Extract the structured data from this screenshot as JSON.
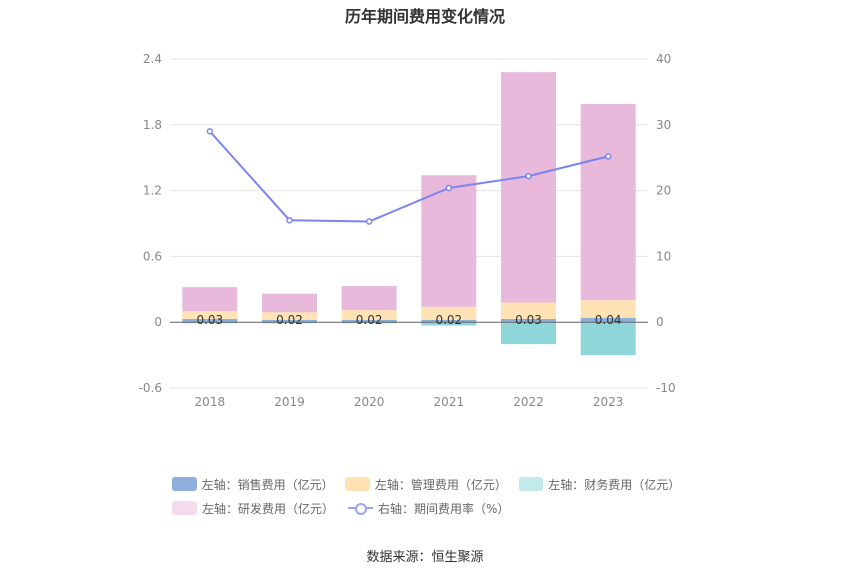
{
  "title": "历年期间费用变化情况",
  "source": "数据来源：恒生聚源",
  "chart_data": {
    "type": "bar",
    "categories": [
      "2018",
      "2019",
      "2020",
      "2021",
      "2022",
      "2023"
    ],
    "stacked": true,
    "series": [
      {
        "name": "左轴：销售费用（亿元）",
        "axis": "left",
        "type": "bar",
        "color": "#8eaedb",
        "values": [
          0.03,
          0.02,
          0.02,
          0.02,
          0.03,
          0.04
        ],
        "labels": [
          "0.03",
          "0.02",
          "0.02",
          "0.02",
          "0.03",
          "0.04"
        ]
      },
      {
        "name": "左轴：管理费用（亿元）",
        "axis": "left",
        "type": "bar",
        "color": "#ffe3b4",
        "values": [
          0.07,
          0.07,
          0.09,
          0.12,
          0.15,
          0.16
        ]
      },
      {
        "name": "左轴：财务费用（亿元）",
        "axis": "left",
        "type": "bar",
        "color": "#8fd6da",
        "values": [
          -0.01,
          -0.01,
          -0.01,
          -0.03,
          -0.2,
          -0.3
        ]
      },
      {
        "name": "左轴：研发费用（亿元）",
        "axis": "left",
        "type": "bar",
        "color": "#e8b9db",
        "values": [
          0.22,
          0.17,
          0.22,
          1.2,
          2.1,
          1.79
        ]
      },
      {
        "name": "右轴：期间费用率（%）",
        "axis": "right",
        "type": "line",
        "color": "#7b84ef",
        "values": [
          29.0,
          15.5,
          15.3,
          20.4,
          22.2,
          25.2
        ]
      }
    ],
    "left_axis": {
      "min": -0.6,
      "max": 2.4,
      "ticks": [
        "-0.6",
        "0",
        "0.6",
        "1.2",
        "1.8",
        "2.4"
      ]
    },
    "right_axis": {
      "min": -10,
      "max": 40,
      "ticks": [
        "-10",
        "0",
        "10",
        "20",
        "30",
        "40"
      ]
    },
    "grid": true,
    "legend_position": "bottom"
  },
  "legend_swatch_colors": [
    "#8eaedb",
    "#ffe3b4",
    "#c3eaeb",
    "#f4dbee"
  ]
}
